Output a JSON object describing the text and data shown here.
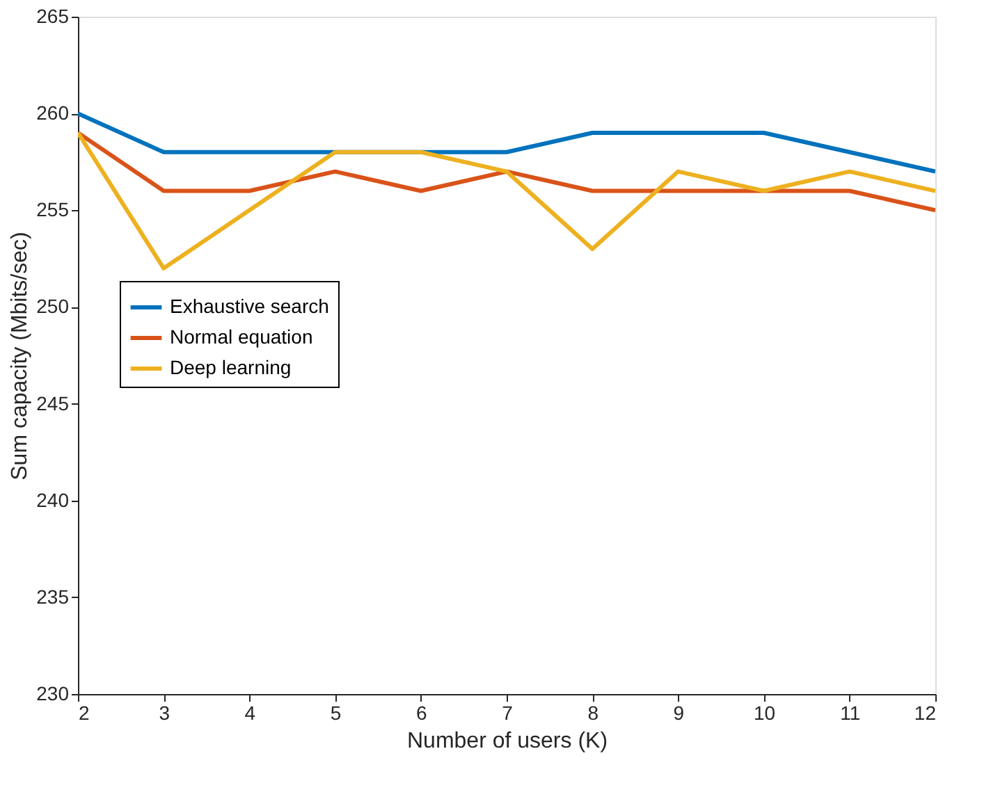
{
  "chart_data": {
    "type": "line",
    "xlabel": "Number of users (K)",
    "ylabel": "Sum capacity (Mbits/sec)",
    "x": [
      2,
      3,
      4,
      5,
      6,
      7,
      8,
      9,
      10,
      11,
      12
    ],
    "series": [
      {
        "name": "Exhaustive search",
        "color": "#0072bd",
        "values": [
          260,
          258,
          258,
          258,
          258,
          258,
          259,
          259,
          259,
          258,
          257
        ]
      },
      {
        "name": "Normal equation",
        "color": "#d95319",
        "values": [
          259,
          256,
          256,
          257,
          256,
          257,
          256,
          256,
          256,
          256,
          255
        ]
      },
      {
        "name": "Deep learning",
        "color": "#edb120",
        "values": [
          259,
          252,
          255,
          258,
          258,
          257,
          253,
          257,
          256,
          257,
          256
        ]
      }
    ],
    "xlim": [
      2,
      12
    ],
    "xticks": [
      2,
      3,
      4,
      5,
      6,
      7,
      8,
      9,
      10,
      11,
      12
    ],
    "ylim": [
      230,
      265
    ],
    "yticks": [
      230,
      235,
      240,
      245,
      250,
      255,
      260,
      265
    ],
    "grid": false,
    "legend": "left",
    "marker": "none",
    "line_style": "solid"
  }
}
